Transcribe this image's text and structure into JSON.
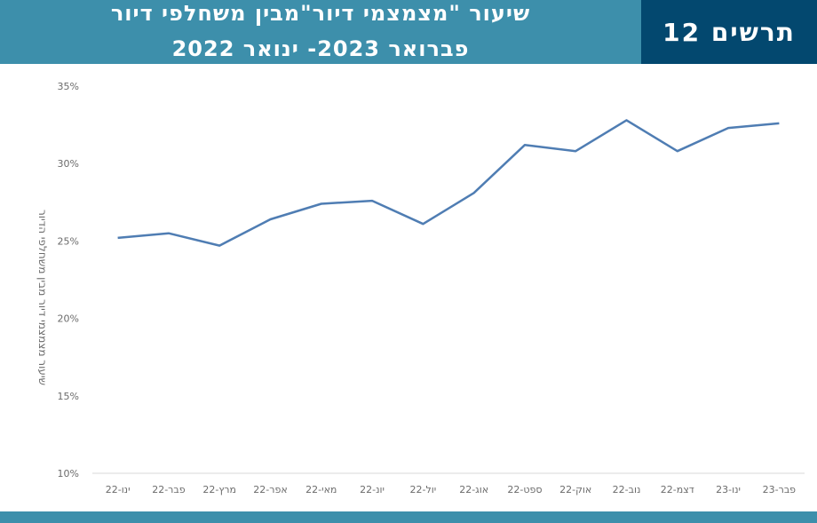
{
  "header": {
    "title_line1": "שיעור \"מצמצמי דיור\"מבין משחלפי דיור",
    "title_line2": "פברואר 2023- ינואר 2022",
    "badge": "תרשים 12"
  },
  "colors": {
    "header_bg": "#3d8fab",
    "badge_bg": "#03486f",
    "line": "#4f7db3",
    "footer_bar": "#3d8fab"
  },
  "chart_data": {
    "type": "line",
    "ylabel": "שיעור מצמצמי דיור מבין משחלפי הדיור",
    "ylim": [
      0.1,
      0.35
    ],
    "yticks": [
      0.1,
      0.15,
      0.2,
      0.25,
      0.3,
      0.35
    ],
    "ytick_labels": [
      "10%",
      "15%",
      "20%",
      "25%",
      "30%",
      "35%"
    ],
    "categories": [
      "ינו-22",
      "פבר-22",
      "מרץ-22",
      "אפר-22",
      "מאי-22",
      "יונ-22",
      "יול-22",
      "אוג-22",
      "ספט-22",
      "אוק-22",
      "נוב-22",
      "דצמ-22",
      "ינו-23",
      "פבר-23"
    ],
    "series": [
      {
        "values": [
          0.252,
          0.255,
          0.247,
          0.264,
          0.274,
          0.276,
          0.261,
          0.281,
          0.312,
          0.308,
          0.328,
          0.308,
          0.323,
          0.326
        ]
      }
    ],
    "grid": false,
    "legend": "none"
  }
}
